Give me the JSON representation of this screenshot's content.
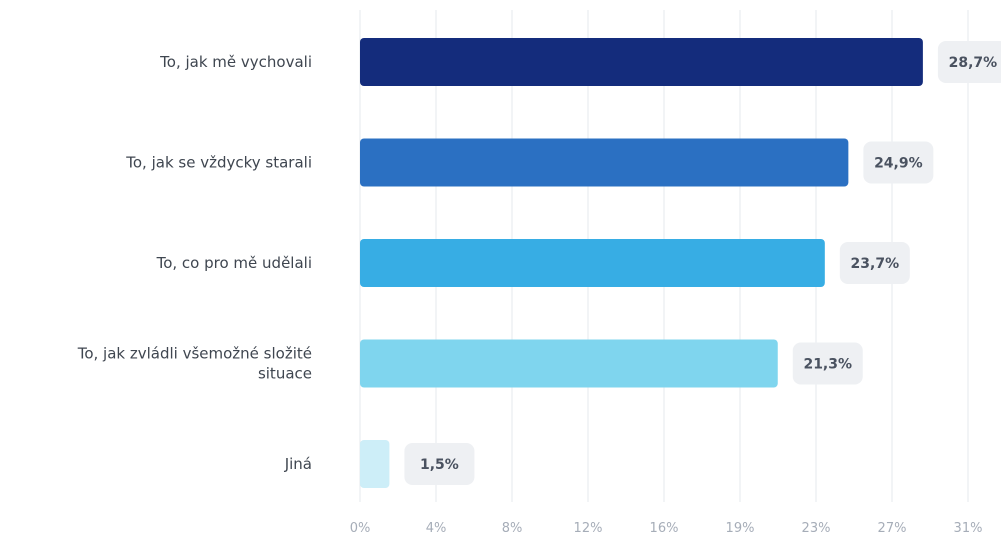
{
  "chart_data": {
    "type": "bar",
    "orientation": "horizontal",
    "categories": [
      "To, jak mě vychovali",
      "To, jak se vždycky starali",
      "To, co pro mě udělali",
      "To, jak zvládli všemožné složité situace",
      "Jiná"
    ],
    "category_label_lines": [
      [
        "To, jak mě vychovali"
      ],
      [
        "To, jak se vždycky starali"
      ],
      [
        "To, co pro mě udělali"
      ],
      [
        "To, jak zvládli všemožné složité",
        "situace"
      ],
      [
        "Jiná"
      ]
    ],
    "values": [
      28.7,
      24.9,
      23.7,
      21.3,
      1.5
    ],
    "value_labels": [
      "28,7%",
      "24,9%",
      "23,7%",
      "21,3%",
      "1,5%"
    ],
    "bar_colors": [
      "#142c7c",
      "#2b70c2",
      "#37ade4",
      "#7fd5ee",
      "#cdeef8"
    ],
    "x_ticks": [
      "0%",
      "4%",
      "8%",
      "12%",
      "16%",
      "19%",
      "23%",
      "27%",
      "31%"
    ],
    "x_tick_values": [
      0,
      3.875,
      7.75,
      11.625,
      15.5,
      19.375,
      23.25,
      27.125,
      31
    ],
    "xlim": [
      0,
      31
    ],
    "grid": true,
    "title": "",
    "xlabel": "",
    "ylabel": ""
  }
}
